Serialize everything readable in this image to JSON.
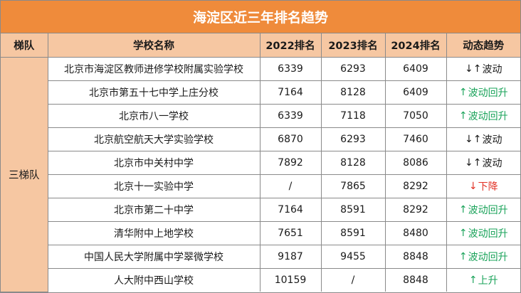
{
  "title": "海淀区近三年排名趋势",
  "headers": {
    "tier": "梯队",
    "school": "学校名称",
    "rank2022": "2022排名",
    "rank2023": "2023排名",
    "rank2024": "2024排名",
    "trend": "动态趋势"
  },
  "tier_label": "三梯队",
  "colors": {
    "title_bg": "#ef8b3b",
    "header_bg": "#f6c7a2",
    "rise": "#1aa35a",
    "down": "#e23226"
  },
  "rows": [
    {
      "school": "北京市海淀区教师进修学校附属实验学校",
      "r2022": "6339",
      "r2023": "6293",
      "r2024": "6409",
      "arrow": "↓↑",
      "trend": "波动",
      "kind": "wave"
    },
    {
      "school": "北京市第五十七中学上庄分校",
      "r2022": "7164",
      "r2023": "8128",
      "r2024": "6409",
      "arrow": "↑",
      "trend": "波动回升",
      "kind": "rise"
    },
    {
      "school": "北京市八一学校",
      "r2022": "6339",
      "r2023": "7118",
      "r2024": "7050",
      "arrow": "↑",
      "trend": "波动回升",
      "kind": "rise"
    },
    {
      "school": "北京航空航天大学实验学校",
      "r2022": "6870",
      "r2023": "6293",
      "r2024": "7460",
      "arrow": "↓↑",
      "trend": "波动",
      "kind": "wave"
    },
    {
      "school": "北京市中关村中学",
      "r2022": "7892",
      "r2023": "8128",
      "r2024": "8086",
      "arrow": "↓↑",
      "trend": "波动",
      "kind": "wave"
    },
    {
      "school": "北京十一实验中学",
      "r2022": "/",
      "r2023": "7865",
      "r2024": "8292",
      "arrow": "↓",
      "trend": "下降",
      "kind": "down"
    },
    {
      "school": "北京市第二十中学",
      "r2022": "7164",
      "r2023": "8591",
      "r2024": "8292",
      "arrow": "↑",
      "trend": "波动回升",
      "kind": "rise"
    },
    {
      "school": "清华附中上地学校",
      "r2022": "7651",
      "r2023": "8591",
      "r2024": "8480",
      "arrow": "↑",
      "trend": "波动回升",
      "kind": "rise"
    },
    {
      "school": "中国人民大学附属中学翠微学校",
      "r2022": "9187",
      "r2023": "9455",
      "r2024": "8848",
      "arrow": "↑",
      "trend": "波动回升",
      "kind": "rise"
    },
    {
      "school": "人大附中西山学校",
      "r2022": "10159",
      "r2023": "/",
      "r2024": "8848",
      "arrow": "↑",
      "trend": "上升",
      "kind": "up"
    }
  ]
}
